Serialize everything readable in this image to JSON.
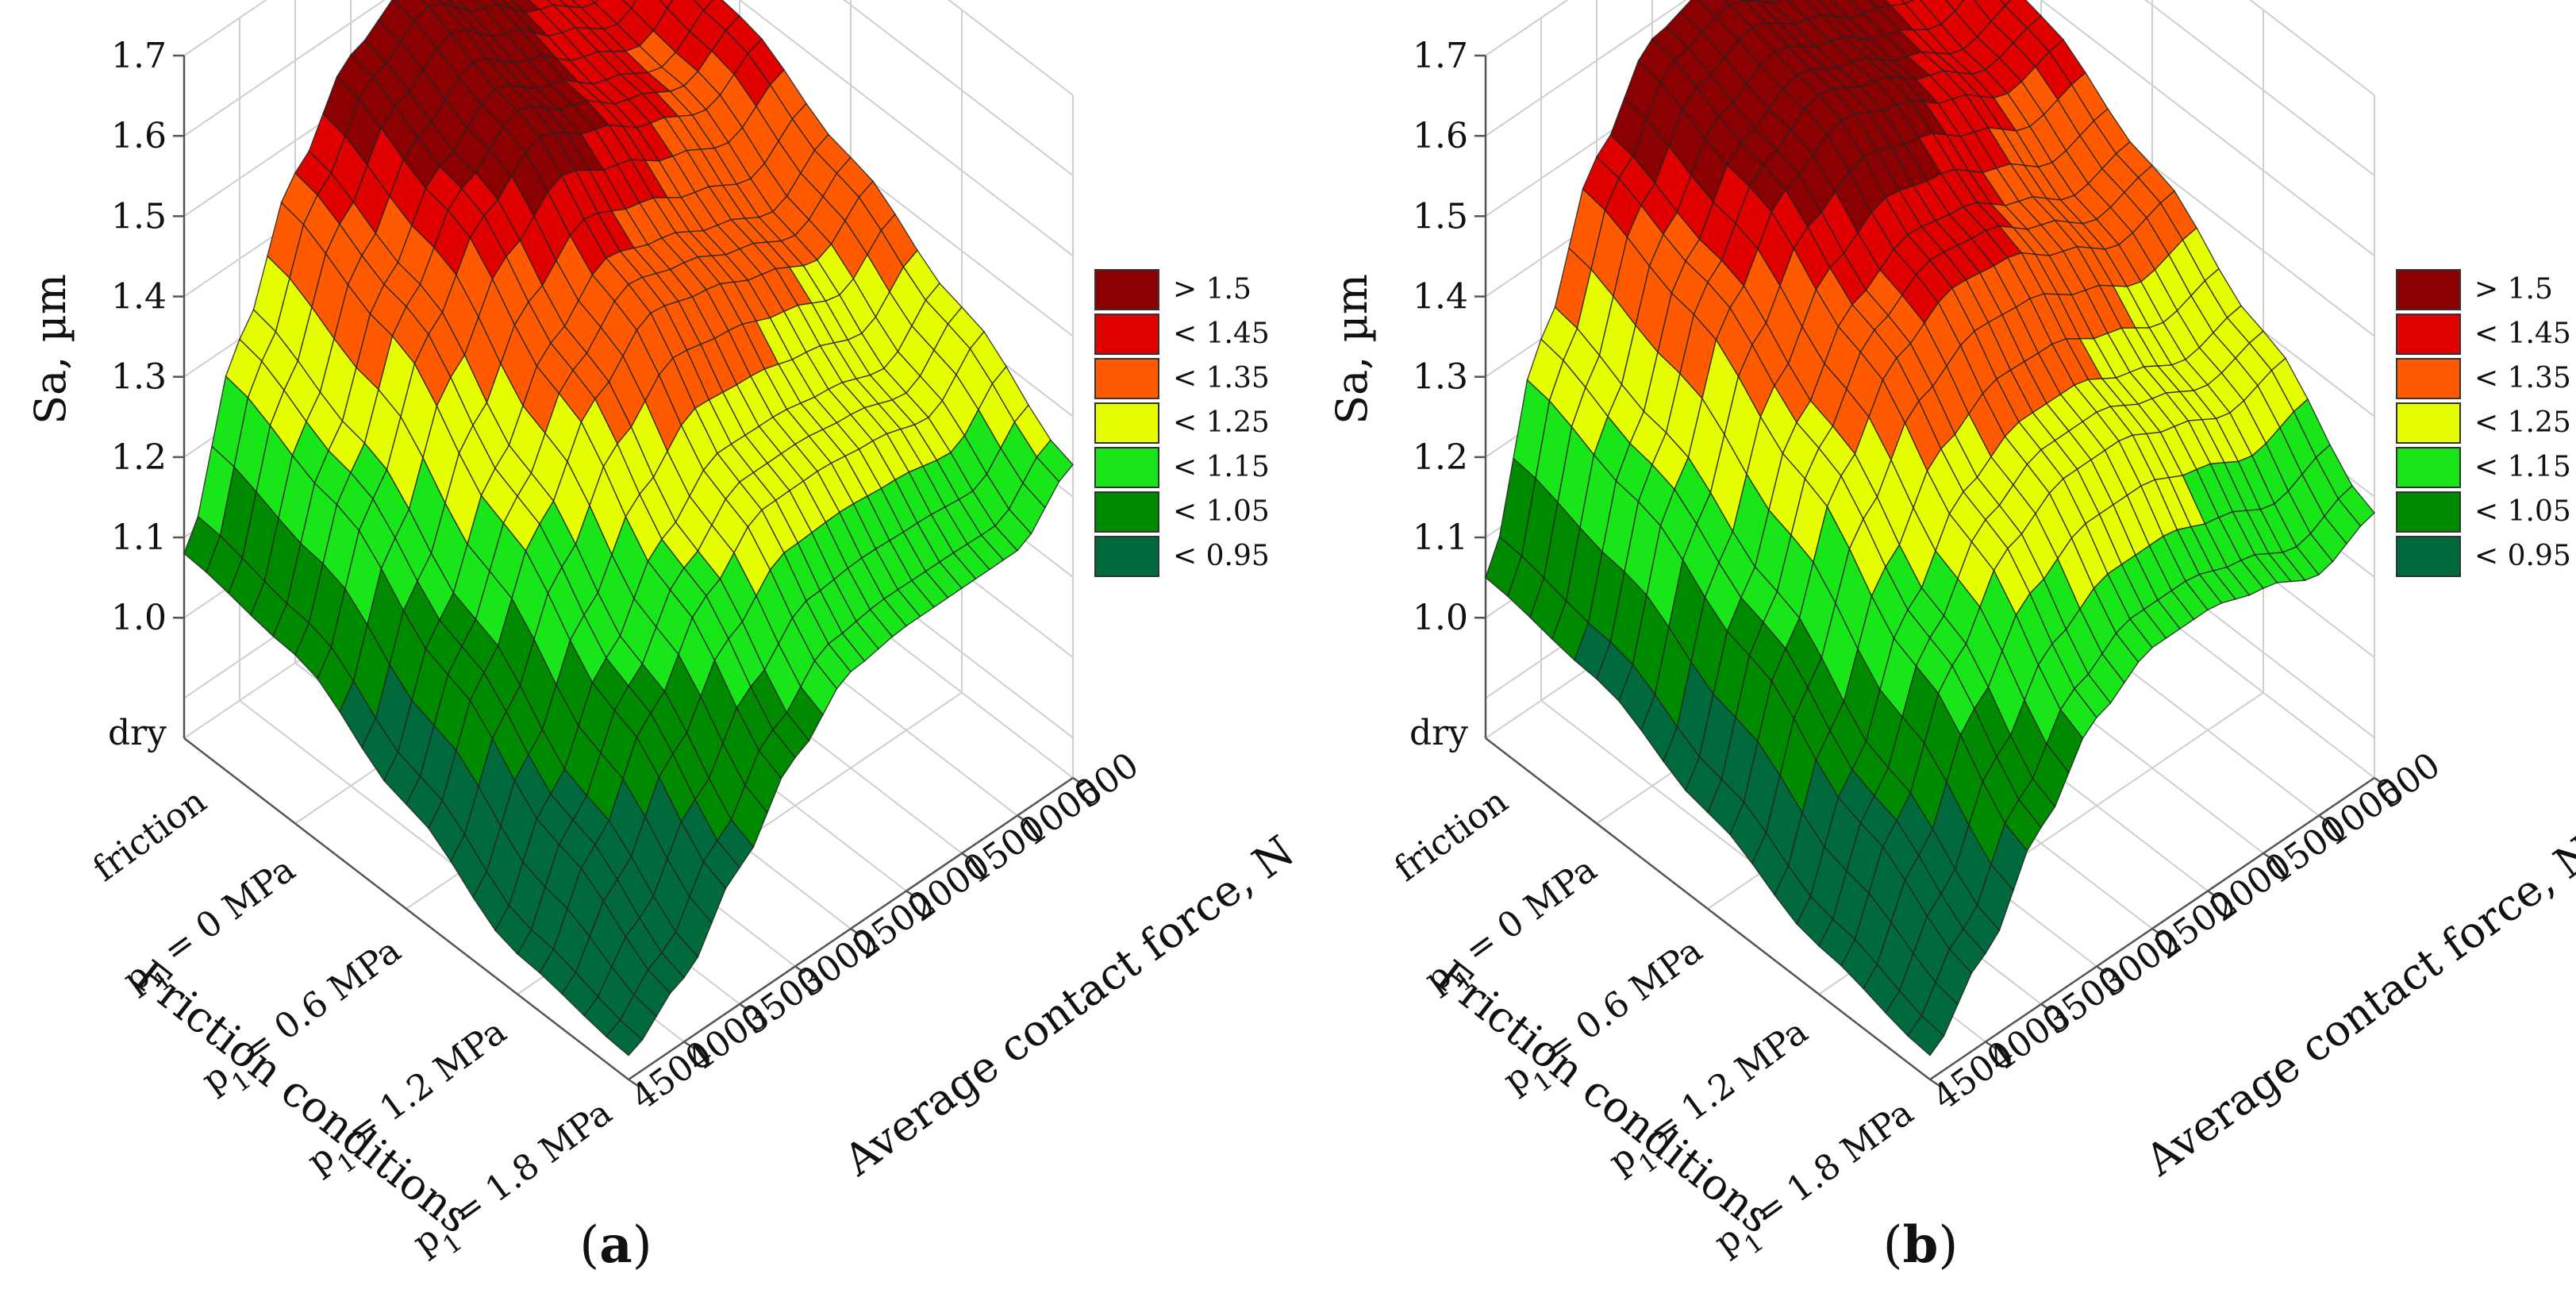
{
  "chart_data": [
    {
      "type": "surface3d",
      "panel_label_prefix": "(",
      "panel_label_letter": "a",
      "panel_label_suffix": ")",
      "zlabel": "Sa, µm",
      "xlabel": "Friction conditions",
      "ylabel": "Average contact force, N",
      "z_ticks": [
        "1.7",
        "1.6",
        "1.5",
        "1.4",
        "1.3",
        "1.2",
        "1.1",
        "1.0"
      ],
      "zlim": [
        0.85,
        1.7
      ],
      "friction_ticks": [
        {
          "line1": "dry",
          "line2": "friction"
        },
        {
          "line1": "p",
          "sub": "1",
          "rest": " = 0 MPa"
        },
        {
          "line1": "p",
          "sub": "1",
          "rest": " = 0.6 MPa"
        },
        {
          "line1": "p",
          "sub": "1",
          "rest": " = 1.2 MPa"
        },
        {
          "line1": "p",
          "sub": "1",
          "rest": " = 1.8 MPa"
        }
      ],
      "force_ticks": [
        "500",
        "1000",
        "1500",
        "2000",
        "2500",
        "3000",
        "3500",
        "4000",
        "4500"
      ],
      "friction_values": [
        0,
        1,
        2,
        3,
        4
      ],
      "force_values": [
        500,
        1000,
        1500,
        2000,
        2500,
        3000,
        3500,
        4000,
        4500
      ],
      "sa_grid": [
        [
          1.52,
          1.46,
          1.5,
          1.55,
          1.6,
          1.56,
          1.46,
          1.3,
          1.08
        ],
        [
          1.48,
          1.44,
          1.47,
          1.51,
          1.55,
          1.5,
          1.4,
          1.24,
          1.06
        ],
        [
          1.41,
          1.36,
          1.39,
          1.42,
          1.44,
          1.38,
          1.27,
          1.13,
          0.98
        ],
        [
          1.33,
          1.27,
          1.29,
          1.3,
          1.3,
          1.24,
          1.14,
          1.02,
          0.9
        ],
        [
          1.24,
          1.18,
          1.18,
          1.18,
          1.17,
          1.11,
          1.02,
          0.93,
          0.88
        ]
      ],
      "legend": {
        "labels": [
          "> 1.5",
          "< 1.45",
          "< 1.35",
          "< 1.25",
          "< 1.15",
          "< 1.05",
          "< 0.95"
        ],
        "colors": [
          "#8b0000",
          "#e00000",
          "#ff5a00",
          "#e6ff00",
          "#19e619",
          "#008a00",
          "#006a3c"
        ]
      }
    },
    {
      "type": "surface3d",
      "panel_label_prefix": "(",
      "panel_label_letter": "b",
      "panel_label_suffix": ")",
      "zlabel": "Sa, µm",
      "xlabel": "Friction conditions",
      "ylabel": "Average contact force, N",
      "z_ticks": [
        "1.7",
        "1.6",
        "1.5",
        "1.4",
        "1.3",
        "1.2",
        "1.1",
        "1.0"
      ],
      "zlim": [
        0.85,
        1.7
      ],
      "friction_ticks": [
        {
          "line1": "dry",
          "line2": "friction"
        },
        {
          "line1": "p",
          "sub": "1",
          "rest": " = 0 MPa"
        },
        {
          "line1": "p",
          "sub": "1",
          "rest": " = 0.6 MPa"
        },
        {
          "line1": "p",
          "sub": "1",
          "rest": " = 1.2 MPa"
        },
        {
          "line1": "p",
          "sub": "1",
          "rest": " = 1.8 MPa"
        }
      ],
      "force_ticks": [
        "500",
        "1000",
        "1500",
        "2000",
        "2500",
        "3000",
        "3500",
        "4000",
        "4500"
      ],
      "friction_values": [
        0,
        1,
        2,
        3,
        4
      ],
      "force_values": [
        500,
        1000,
        1500,
        2000,
        2500,
        3000,
        3500,
        4000,
        4500
      ],
      "sa_grid": [
        [
          1.55,
          1.5,
          1.52,
          1.56,
          1.6,
          1.58,
          1.48,
          1.3,
          1.05
        ],
        [
          1.48,
          1.46,
          1.5,
          1.54,
          1.57,
          1.53,
          1.43,
          1.25,
          1.03
        ],
        [
          1.4,
          1.38,
          1.42,
          1.46,
          1.47,
          1.43,
          1.33,
          1.16,
          0.97
        ],
        [
          1.3,
          1.28,
          1.31,
          1.34,
          1.34,
          1.3,
          1.2,
          1.05,
          0.91
        ],
        [
          1.18,
          1.15,
          1.18,
          1.2,
          1.2,
          1.16,
          1.07,
          0.96,
          0.88
        ]
      ],
      "legend": {
        "labels": [
          "> 1.5",
          "< 1.45",
          "< 1.35",
          "< 1.25",
          "< 1.15",
          "< 1.05",
          "< 0.95"
        ],
        "colors": [
          "#8b0000",
          "#e00000",
          "#ff5a00",
          "#e6ff00",
          "#19e619",
          "#008a00",
          "#006a3c"
        ]
      }
    }
  ]
}
